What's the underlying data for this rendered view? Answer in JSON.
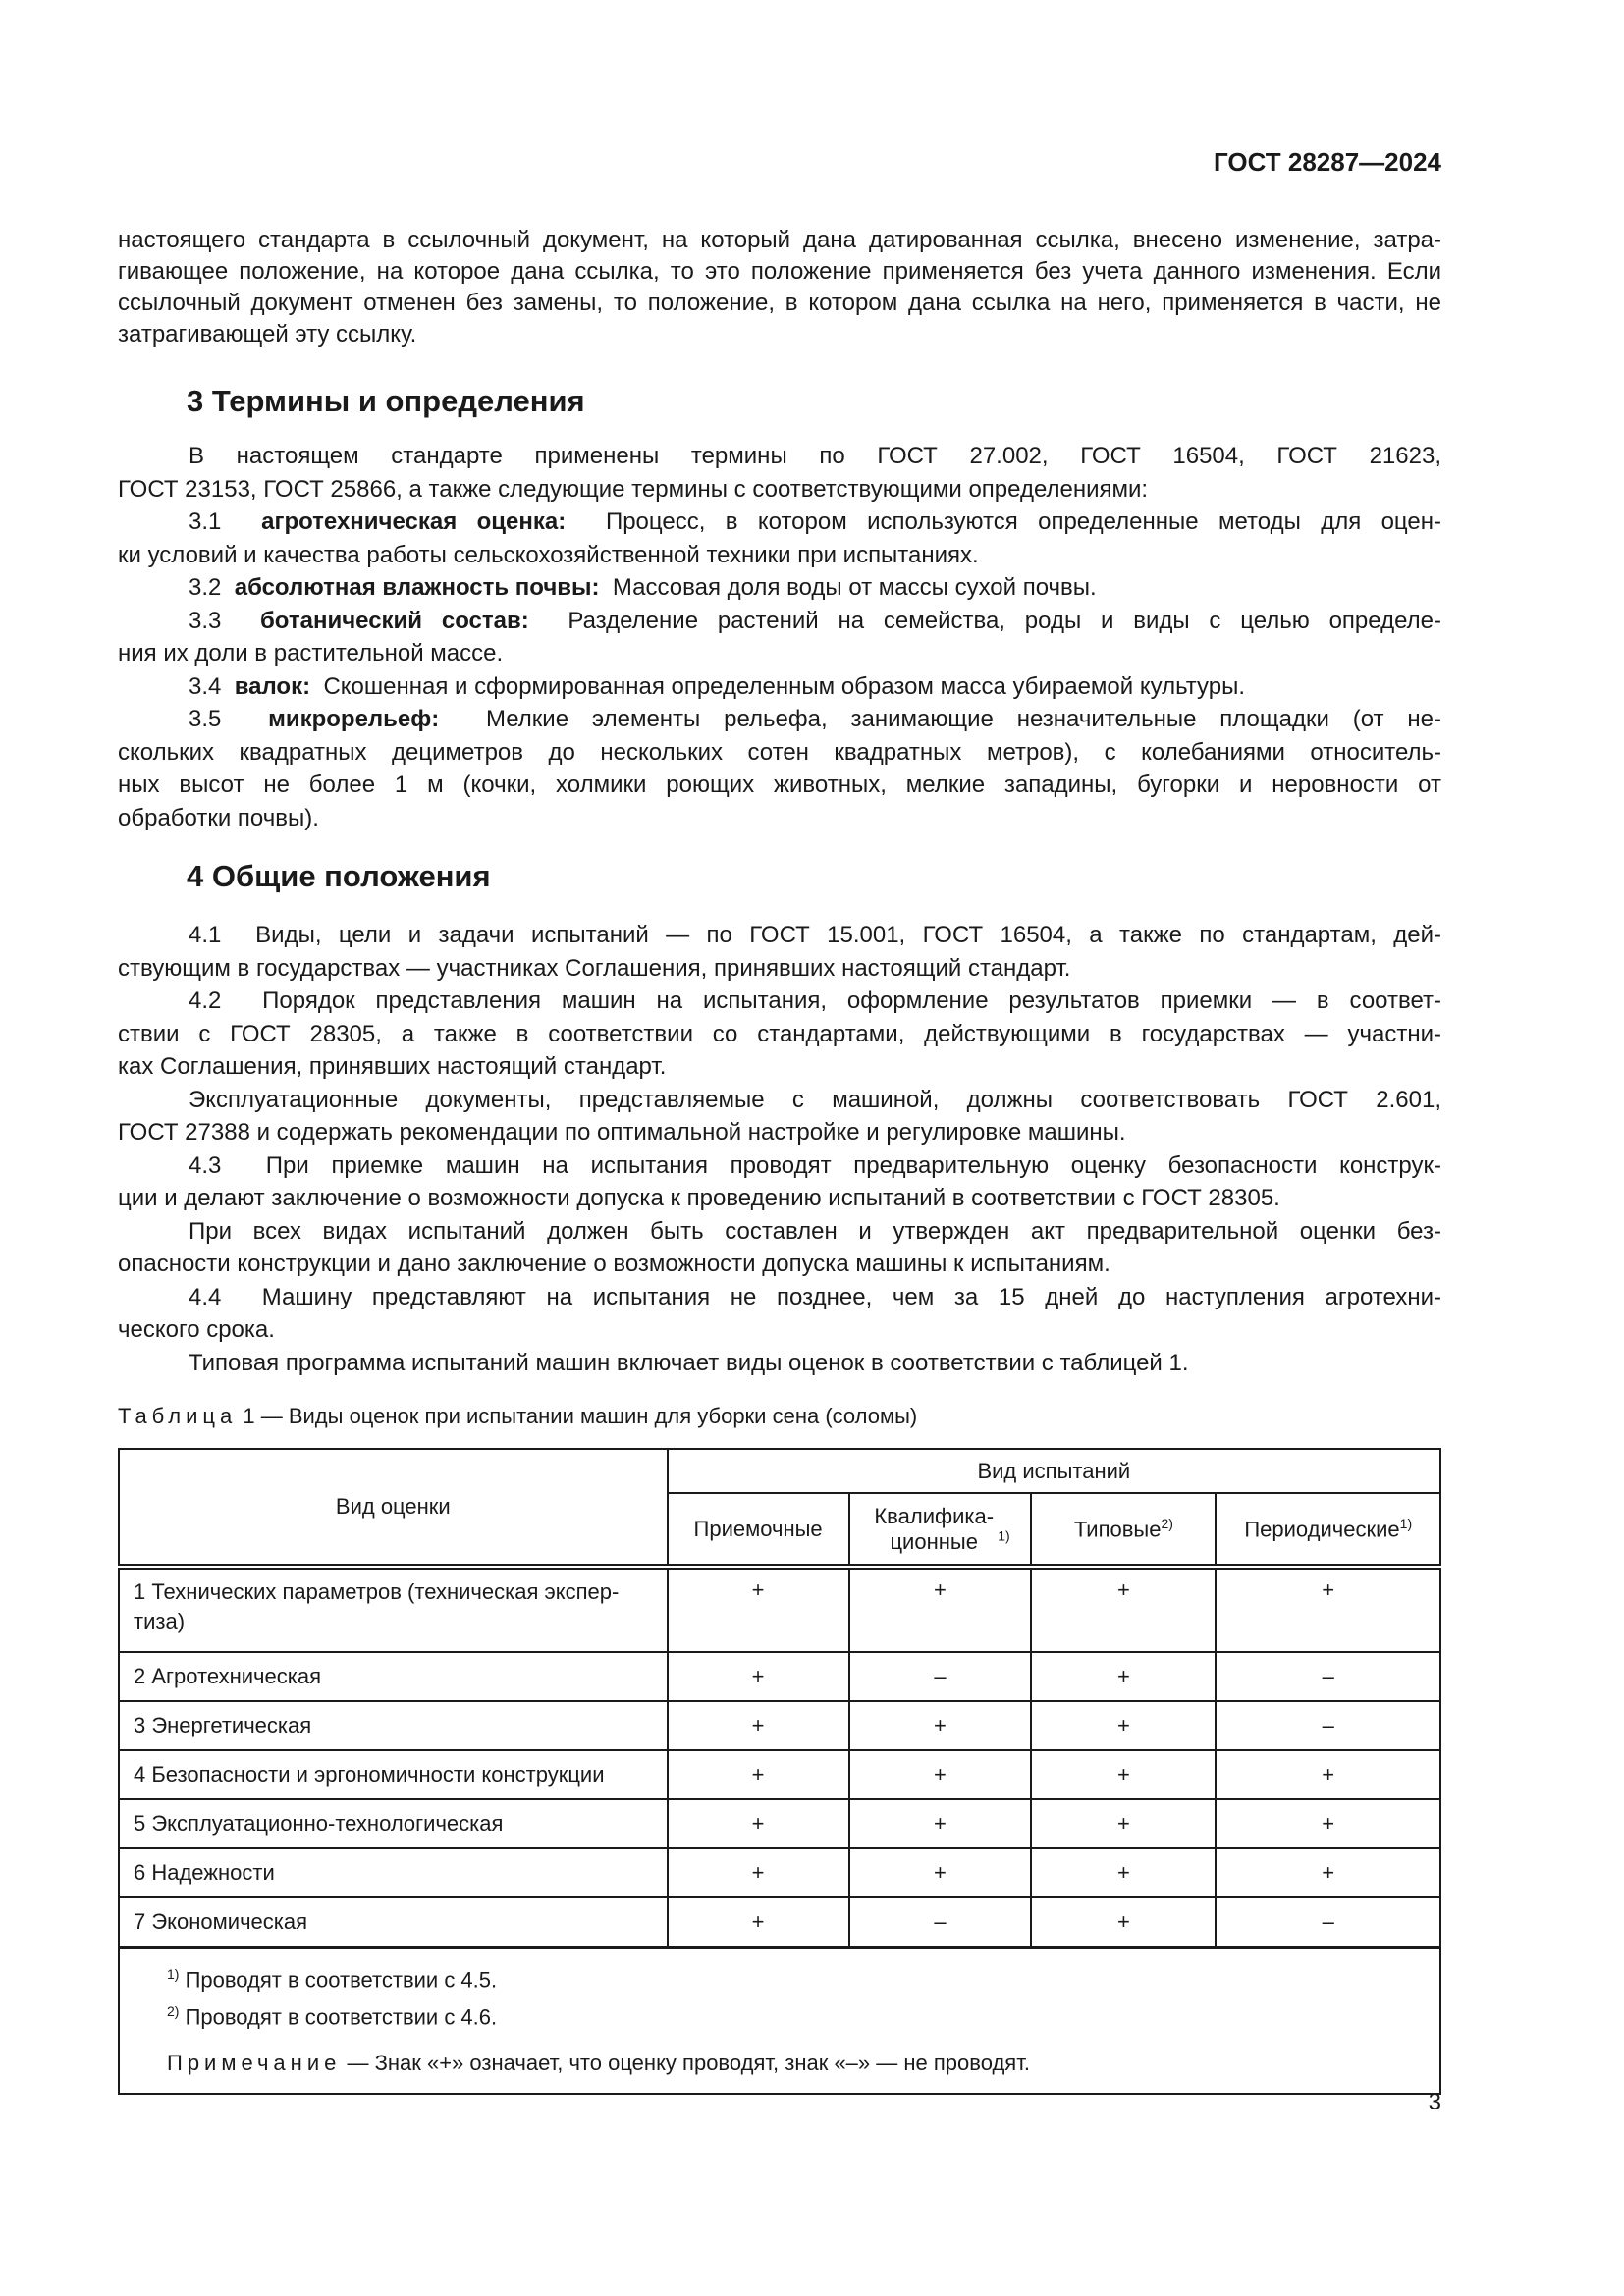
{
  "header": {
    "doc_id": "ГОСТ 28287—2024"
  },
  "intro": [
    [
      "настоящего стандарта в ссылочный документ, на который дана датированная ссылка, внесено изменение, затра-",
      "гивающее положение, на которое дана ссылка, то это положение применяется без учета данного изменения. Если",
      "ссылочный документ отменен без замены, то положение, в котором дана ссылка на него, применяется в части, не",
      "затрагивающей эту ссылку."
    ]
  ],
  "section3": {
    "title": "3  Термины и определения",
    "paragraphs": [
      {
        "lines": [
          "В настоящем стандарте применены термины по ГОСТ 27.002, ГОСТ 16504, ГОСТ 21623,",
          "ГОСТ 23153, ГОСТ 25866, а также следующие термины с соответствующими определениями:"
        ]
      },
      {
        "num": "3.1",
        "term": "агротехническая оценка:",
        "lines": [
          "Процесс, в котором используются определенные методы для оцен-",
          "ки условий и качества работы сельскохозяйственной техники при испытаниях."
        ]
      },
      {
        "num": "3.2",
        "term": "абсолютная влажность почвы:",
        "lines": [
          "Массовая доля воды от массы сухой почвы."
        ]
      },
      {
        "num": "3.3",
        "term": "ботанический состав:",
        "lines": [
          "Разделение растений на семейства, роды и виды с целью определе-",
          "ния их доли в растительной массе."
        ]
      },
      {
        "num": "3.4",
        "term": "валок:",
        "lines": [
          "Скошенная и сформированная определенным образом масса убираемой культуры."
        ]
      },
      {
        "num": "3.5",
        "term": "микрорельеф:",
        "lines": [
          "Мелкие элементы рельефа, занимающие незначительные площадки (от не-",
          "скольких квадратных дециметров до нескольких сотен квадратных метров), с колебаниями относитель-",
          "ных высот не более 1 м (кочки, холмики роющих животных, мелкие западины, бугорки и неровности от",
          "обработки почвы)."
        ]
      }
    ]
  },
  "section4": {
    "title": "4  Общие положения",
    "paragraphs": [
      {
        "num": "4.1",
        "lines": [
          "Виды, цели и задачи испытаний — по ГОСТ 15.001, ГОСТ 16504, а также по стандартам, дей-",
          "ствующим в государствах — участниках Соглашения, принявших настоящий стандарт."
        ]
      },
      {
        "num": "4.2",
        "lines": [
          "Порядок представления машин на испытания, оформление результатов приемки — в соответ-",
          "ствии с ГОСТ 28305, а также в соответствии со стандартами, действующими в государствах — участни-",
          "ках Соглашения, принявших настоящий стандарт."
        ]
      },
      {
        "lines": [
          "Эксплуатационные документы, представляемые с машиной, должны соответствовать ГОСТ 2.601,",
          "ГОСТ 27388 и содержать рекомендации по оптимальной настройке и регулировке машины."
        ]
      },
      {
        "num": "4.3",
        "lines": [
          "При приемке машин на испытания проводят предварительную оценку безопасности конструк-",
          "ции и делают заключение о возможности допуска к проведению испытаний в соответствии с ГОСТ 28305."
        ]
      },
      {
        "lines": [
          "При всех видах испытаний должен быть составлен и утвержден акт предварительной оценки без-",
          "опасности конструкции и дано заключение о возможности допуска машины к испытаниям."
        ]
      },
      {
        "num": "4.4",
        "lines": [
          "Машину представляют на испытания не позднее, чем за 15 дней до наступления агротехни-",
          "ческого срока."
        ]
      },
      {
        "lines": [
          "Типовая программа испытаний машин включает виды оценок в соответствии с таблицей 1."
        ]
      }
    ]
  },
  "table": {
    "caption_label": "Таблица",
    "caption_text": " 1 — Виды оценок при испытании машин для уборки сена (соломы)",
    "col_header_main": "Вид оценки",
    "col_header_group": "Вид испытаний",
    "columns": [
      {
        "label": "Приемочные",
        "sup": ""
      },
      {
        "label": "Квалифика-ционные",
        "sup": "1)"
      },
      {
        "label": "Типовые",
        "sup": "2)"
      },
      {
        "label": "Периодические",
        "sup": "1)"
      }
    ],
    "rows": [
      {
        "name": "1  Технических параметров (техническая экспер-тиза)",
        "values": [
          "+",
          "+",
          "+",
          "+"
        ]
      },
      {
        "name": "2  Агротехническая",
        "values": [
          "+",
          "–",
          "+",
          "–"
        ]
      },
      {
        "name": "3  Энергетическая",
        "values": [
          "+",
          "+",
          "+",
          "–"
        ]
      },
      {
        "name": "4  Безопасности и эргономичности конструкции",
        "values": [
          "+",
          "+",
          "+",
          "+"
        ]
      },
      {
        "name": "5 Эксплуатационно-технологическая",
        "values": [
          "+",
          "+",
          "+",
          "+"
        ]
      },
      {
        "name": "6  Надежности",
        "values": [
          "+",
          "+",
          "+",
          "+"
        ]
      },
      {
        "name": "7  Экономическая",
        "values": [
          "+",
          "–",
          "+",
          "–"
        ]
      }
    ],
    "footnotes": [
      {
        "mark": "1)",
        "text": " Проводят в соответствии с 4.5."
      },
      {
        "mark": "2)",
        "text": " Проводят в соответствии с 4.6."
      }
    ],
    "note_label": "Примечание",
    "note_text": " — Знак «+» означает, что оценку проводят, знак «–» — не проводят."
  },
  "page_number": "3"
}
